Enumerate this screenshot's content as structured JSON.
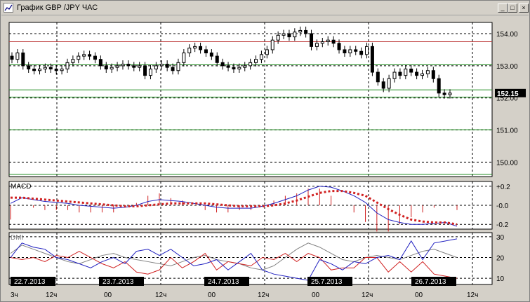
{
  "window": {
    "title": "График GBP /JPY  ЧАС",
    "buttons": {
      "minimize": "_",
      "maximize": "□",
      "close": "×"
    }
  },
  "colors": {
    "bg": "#ffffff",
    "grid": "#000000",
    "resistance": "#c04040",
    "support": "#1a8a1a",
    "macd_line": "#2020c0",
    "macd_signal": "#d02020",
    "dmi_plus": "#2020c0",
    "dmi_minus": "#d02020",
    "adx": "#808080",
    "candle": "#000000"
  },
  "chart_data": [
    {
      "type": "candlestick",
      "name": "price",
      "x_labels": [
        "22.7.2013",
        "23.7.2013",
        "24.7.2013",
        "25.7.2013",
        "26.7.2013"
      ],
      "hour_ticks": [
        "3ч",
        "12ч",
        "00",
        "12ч",
        "00",
        "12ч",
        "00",
        "12ч",
        "00",
        "12ч"
      ],
      "y_ticks": [
        "154.00",
        "153.00",
        "152.00",
        "151.00",
        "150.00"
      ],
      "ylim": [
        149.55,
        154.35
      ],
      "current_price_label": "152.15",
      "horizontal_levels": [
        {
          "value": 153.75,
          "color": "resistance"
        },
        {
          "value": 153.03,
          "color": "support"
        },
        {
          "value": 152.25,
          "color": "support"
        },
        {
          "value": 152.02,
          "color": "support"
        },
        {
          "value": 151.01,
          "color": "support"
        },
        {
          "value": 149.62,
          "color": "support"
        }
      ],
      "close": [
        153.2,
        153.4,
        153.0,
        152.9,
        152.85,
        152.9,
        152.95,
        152.9,
        152.85,
        152.9,
        153.1,
        153.2,
        153.3,
        153.35,
        153.3,
        153.2,
        153.0,
        152.9,
        152.95,
        153.0,
        153.05,
        153.0,
        152.95,
        153.0,
        152.7,
        152.9,
        153.0,
        153.05,
        152.95,
        152.85,
        153.1,
        153.4,
        153.55,
        153.6,
        153.5,
        153.4,
        153.3,
        153.1,
        153.0,
        152.95,
        152.9,
        152.95,
        153.0,
        153.1,
        153.2,
        153.35,
        153.5,
        153.8,
        153.95,
        154.0,
        153.9,
        154.05,
        154.1,
        154.0,
        153.6,
        153.7,
        153.75,
        153.8,
        153.7,
        153.5,
        153.4,
        153.5,
        153.45,
        153.35,
        153.6,
        152.8,
        152.5,
        152.3,
        152.6,
        152.8,
        152.7,
        152.9,
        152.8,
        152.7,
        152.75,
        152.85,
        152.6,
        152.15,
        152.1,
        152.15
      ]
    },
    {
      "type": "line",
      "name": "MACD",
      "title": "MACD",
      "y_ticks": [
        "+0.2",
        "-0.0",
        "-0.2"
      ],
      "ylim": [
        -0.25,
        0.25
      ],
      "macd": [
        0.02,
        0.08,
        0.06,
        0.04,
        0.03,
        0.02,
        0.0,
        -0.01,
        -0.02,
        -0.03,
        -0.02,
        0.0,
        0.04,
        0.06,
        0.05,
        0.04,
        0.02,
        0.0,
        -0.02,
        -0.03,
        -0.03,
        -0.03,
        -0.01,
        0.02,
        0.06,
        0.1,
        0.16,
        0.2,
        0.19,
        0.15,
        0.1,
        0.03,
        -0.08,
        -0.15,
        -0.18,
        -0.2,
        -0.2,
        -0.19,
        -0.18,
        -0.22
      ],
      "signal": [
        0.08,
        0.08,
        0.07,
        0.06,
        0.05,
        0.04,
        0.03,
        0.02,
        0.01,
        0.0,
        -0.01,
        -0.01,
        0.0,
        0.01,
        0.02,
        0.02,
        0.02,
        0.02,
        0.01,
        0.0,
        -0.01,
        -0.01,
        -0.01,
        0.0,
        0.02,
        0.05,
        0.09,
        0.13,
        0.15,
        0.15,
        0.13,
        0.1,
        0.03,
        -0.04,
        -0.1,
        -0.15,
        -0.17,
        -0.18,
        -0.18,
        -0.2
      ]
    },
    {
      "type": "line",
      "name": "DMI",
      "title": "DMI",
      "y_ticks": [
        "30",
        "20",
        "10"
      ],
      "ylim": [
        7,
        32
      ],
      "plus_di": [
        20,
        27,
        25,
        24,
        20,
        19,
        17,
        15,
        18,
        20,
        17,
        23,
        24,
        21,
        24,
        20,
        16,
        17,
        19,
        14,
        18,
        22,
        14,
        12,
        11,
        10,
        9,
        19,
        17,
        14,
        18,
        17,
        20,
        21,
        19,
        28,
        19,
        27,
        28,
        29
      ],
      "minus_di": [
        20,
        19,
        20,
        18,
        21,
        20,
        23,
        20,
        17,
        15,
        18,
        13,
        12,
        14,
        20,
        15,
        18,
        22,
        14,
        18,
        17,
        16,
        20,
        19,
        22,
        18,
        22,
        20,
        14,
        15,
        15,
        20,
        20,
        13,
        18,
        13,
        18,
        12,
        11,
        10
      ],
      "adx": [
        22,
        26,
        24,
        22,
        20,
        18,
        17,
        19,
        21,
        22,
        20,
        19,
        18,
        17,
        16,
        18,
        20,
        21,
        19,
        18,
        17,
        15,
        14,
        16,
        20,
        24,
        27,
        25,
        22,
        19,
        18,
        20,
        21,
        20,
        19,
        21,
        23,
        24,
        22,
        20
      ]
    }
  ]
}
